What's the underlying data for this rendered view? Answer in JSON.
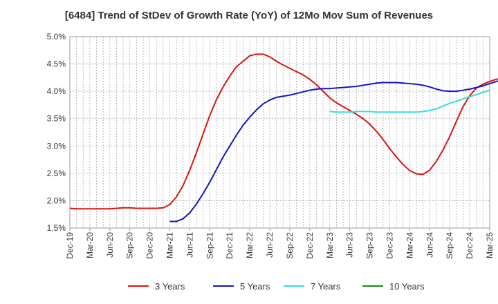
{
  "chart_data": {
    "type": "line",
    "title": "[6484]  Trend of StDev of Growth Rate (YoY) of 12Mo Mov Sum of Revenues",
    "xlabel": "",
    "ylabel": "",
    "ylim": [
      1.5,
      5.0
    ],
    "grid": true,
    "legend_position": "bottom",
    "x_ticks": [
      "Dec-19",
      "Mar-20",
      "Jun-20",
      "Sep-20",
      "Dec-20",
      "Mar-21",
      "Jun-21",
      "Sep-21",
      "Dec-21",
      "Mar-22",
      "Jun-22",
      "Sep-22",
      "Dec-22",
      "Mar-23",
      "Jun-23",
      "Sep-23",
      "Dec-23",
      "Mar-24",
      "Jun-24",
      "Sep-24",
      "Dec-24",
      "Mar-25"
    ],
    "y_ticks": [
      "1.5%",
      "2.0%",
      "2.5%",
      "3.0%",
      "3.5%",
      "4.0%",
      "4.5%",
      "5.0%"
    ],
    "series": [
      {
        "name": "3 Years",
        "color": "#dd1111",
        "start_month": 0,
        "values": [
          1.86,
          1.85,
          1.85,
          1.85,
          1.85,
          1.85,
          1.85,
          1.86,
          1.87,
          1.87,
          1.86,
          1.86,
          1.86,
          1.86,
          1.87,
          1.93,
          2.07,
          2.28,
          2.56,
          2.88,
          3.22,
          3.56,
          3.85,
          4.08,
          4.28,
          4.45,
          4.55,
          4.65,
          4.68,
          4.68,
          4.63,
          4.55,
          4.48,
          4.42,
          4.36,
          4.3,
          4.22,
          4.12,
          4.0,
          3.88,
          3.79,
          3.72,
          3.65,
          3.58,
          3.5,
          3.4,
          3.27,
          3.12,
          2.95,
          2.8,
          2.66,
          2.55,
          2.49,
          2.48,
          2.56,
          2.72,
          2.93,
          3.17,
          3.45,
          3.72,
          3.92,
          4.06,
          4.13,
          4.18,
          4.22,
          4.23
        ]
      },
      {
        "name": "5 Years",
        "color": "#1111cc",
        "start_month": 15,
        "values": [
          1.62,
          1.62,
          1.67,
          1.78,
          1.94,
          2.13,
          2.34,
          2.57,
          2.8,
          3.0,
          3.2,
          3.38,
          3.53,
          3.66,
          3.77,
          3.84,
          3.89,
          3.91,
          3.93,
          3.96,
          3.99,
          4.02,
          4.04,
          4.05,
          4.05,
          4.06,
          4.07,
          4.08,
          4.09,
          4.11,
          4.13,
          4.15,
          4.16,
          4.16,
          4.16,
          4.15,
          4.14,
          4.13,
          4.11,
          4.08,
          4.04,
          4.01,
          4.0,
          4.0,
          4.02,
          4.04,
          4.07,
          4.1,
          4.14,
          4.18,
          4.21
        ]
      },
      {
        "name": "7 Years",
        "color": "#33dddd",
        "start_month": 39,
        "values": [
          3.63,
          3.62,
          3.62,
          3.62,
          3.63,
          3.63,
          3.63,
          3.62,
          3.62,
          3.62,
          3.62,
          3.62,
          3.62,
          3.62,
          3.63,
          3.65,
          3.68,
          3.73,
          3.78,
          3.82,
          3.86,
          3.9,
          3.94,
          3.98,
          4.02
        ]
      },
      {
        "name": "10 Years",
        "color": "#118811",
        "start_month": 0,
        "values": []
      }
    ]
  }
}
